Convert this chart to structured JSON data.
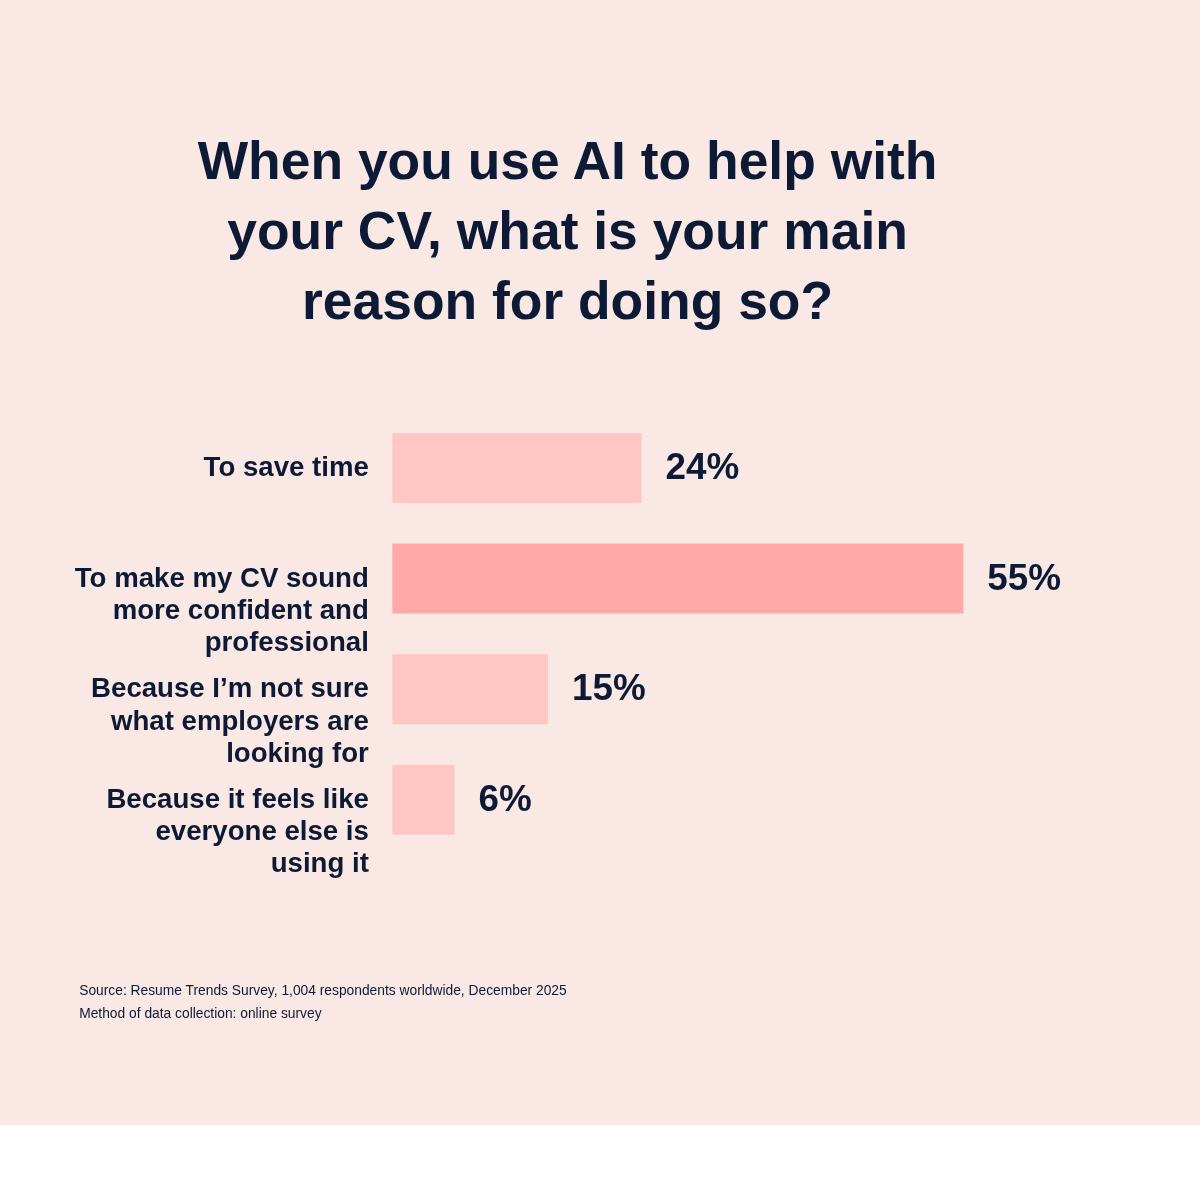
{
  "chart_data": {
    "type": "bar",
    "orientation": "horizontal",
    "title": "When you use AI to help with your CV, what is your main reason for doing so?",
    "categories": [
      "To save time",
      "To make my CV sound more confident and professional",
      "Because I’m not sure what employers are looking for",
      "Because it feels like everyone else is using it"
    ],
    "values": [
      24,
      55,
      15,
      6
    ],
    "colors": [
      "#ffc7c4",
      "#ffaaa9",
      "#ffc7c4",
      "#ffc7c4"
    ],
    "value_labels": [
      "24%",
      "55%",
      "15%",
      "6%"
    ],
    "annotations": [
      "Source: Resume Trends Survey, 1,004 respondents worldwide, December 2025",
      "Method of data collection: online survey"
    ]
  }
}
